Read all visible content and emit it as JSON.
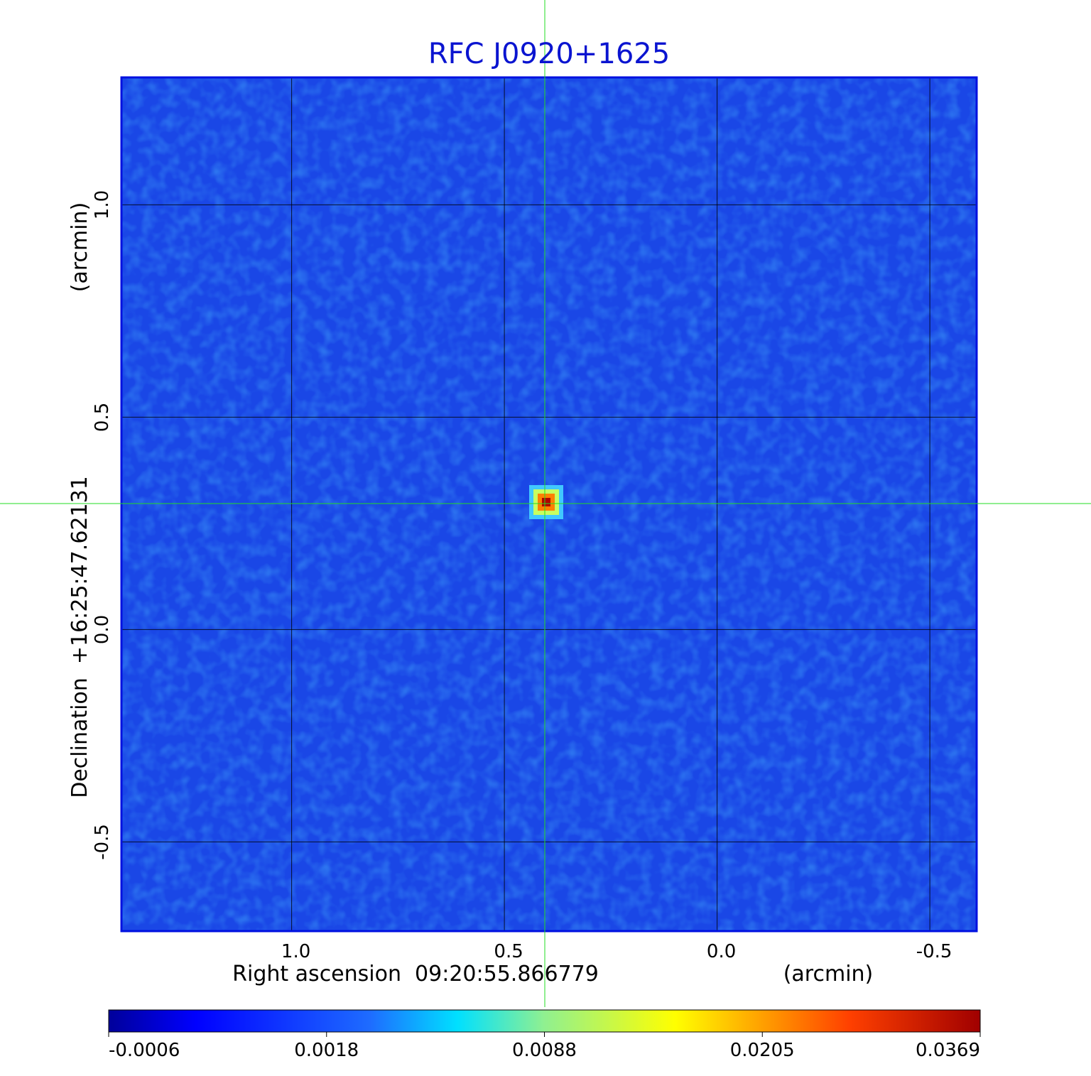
{
  "chart_data": {
    "type": "image",
    "title": "RFC J0920+1625",
    "x_label": "Right ascension  09:20:55.866779",
    "x_unit": "(arcmin)",
    "y_label": "Declination  +16:25:47.62131",
    "y_unit": "(arcmin)",
    "xlim": [
      1.4,
      -0.61
    ],
    "ylim": [
      -0.71,
      1.3
    ],
    "xticks": [
      {
        "value": 1,
        "label": "1.0"
      },
      0.5,
      {
        "value": 0,
        "label": "0.0"
      },
      -0.5
    ],
    "yticks": [
      {
        "value": 1,
        "label": "1.0"
      },
      0.5,
      {
        "value": 0,
        "label": "0.0"
      },
      -0.5
    ],
    "grid": true,
    "colorbar_ticks": [
      -0.0006,
      0.0018,
      0.0088,
      0.0205,
      0.0369
    ]
  }
}
